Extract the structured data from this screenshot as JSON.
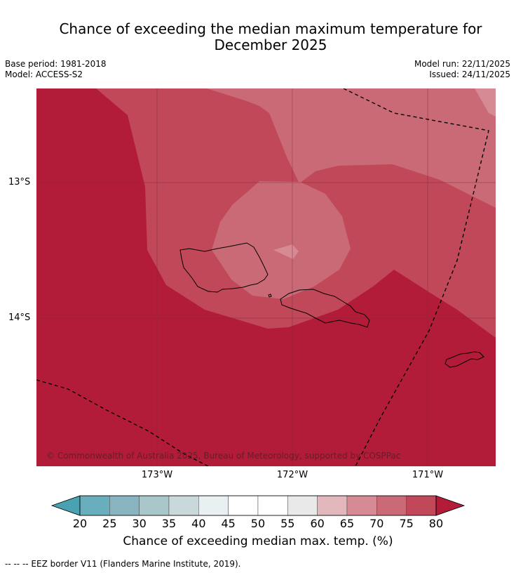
{
  "header": {
    "title_line1": "Chance of exceeding the median maximum temperature for",
    "title_line2": "December 2025",
    "base_period": "Base period: 1981-2018",
    "model": "Model: ACCESS-S2",
    "model_run": "Model run: 22/11/2025",
    "issued": "Issued: 24/11/2025"
  },
  "map": {
    "lat_labels": [
      "13°S",
      "14°S"
    ],
    "lon_labels": [
      "173°W",
      "172°W",
      "171°W"
    ],
    "copyright": "© Commonwealth of Australia 2025, Bureau of Meteorology, supported by COSPPac"
  },
  "colorbar": {
    "ticks": [
      "20",
      "25",
      "30",
      "35",
      "40",
      "45",
      "50",
      "55",
      "60",
      "65",
      "70",
      "75",
      "80"
    ],
    "colors": [
      "#68aebd",
      "#88b4c0",
      "#a9c7cb",
      "#c9d8da",
      "#e9f0f1",
      "#ffffff",
      "#ffffff",
      "#e9e9e9",
      "#e2b8bc",
      "#d68a94",
      "#ca6a76",
      "#c04858"
    ],
    "low_color": "#4aa1b2",
    "high_color": "#b31c38",
    "title": "Chance of exceeding median max. temp. (%)"
  },
  "legend": {
    "eez_note": "--  --  -- EEZ border V11 (Flanders Marine Institute, 2019)."
  },
  "colors": {
    "c80": "#b31c38",
    "c75": "#c04858",
    "c70": "#ca6a76",
    "c65": "#d68a94"
  }
}
